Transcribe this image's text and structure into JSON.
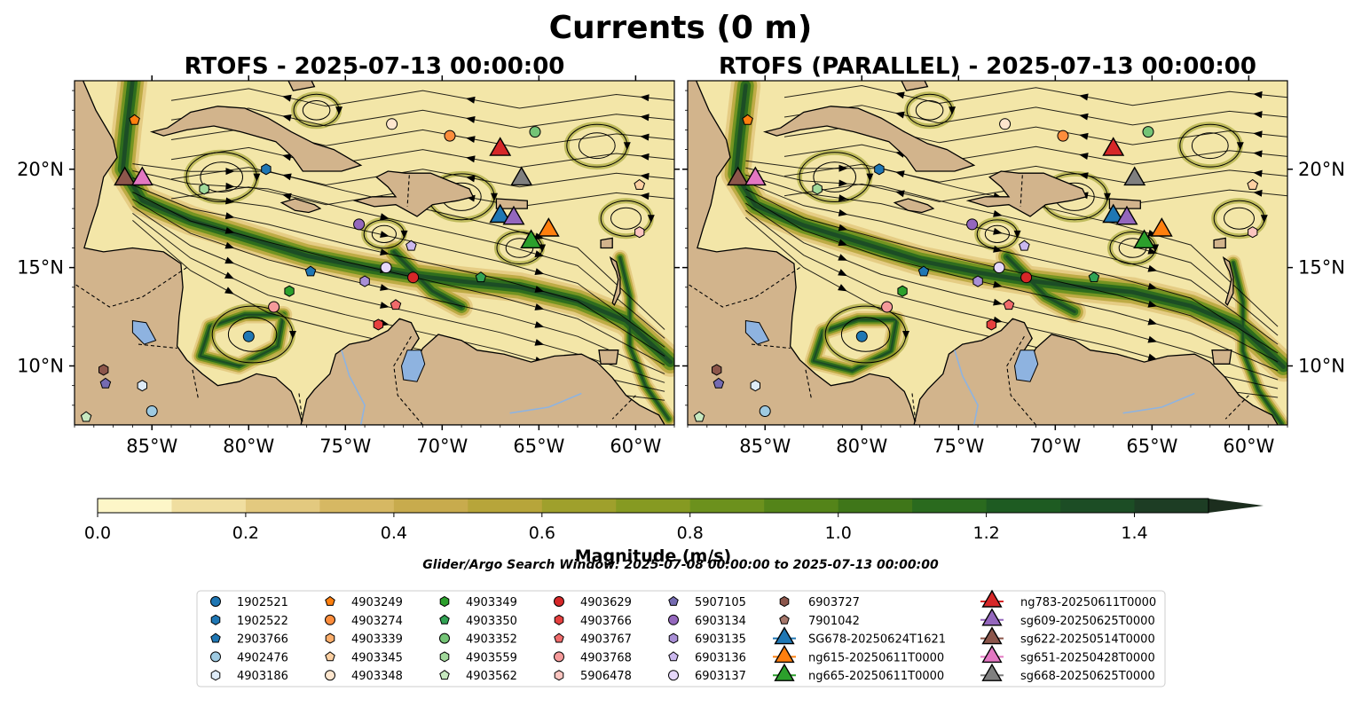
{
  "figure": {
    "suptitle": "Currents (0 m)",
    "search_window": "Glider/Argo Search Window: 2025-07-08 00:00:00 to 2025-07-13 00:00:00"
  },
  "panels": [
    {
      "title": "RTOFS - 2025-07-13 00:00:00"
    },
    {
      "title": "RTOFS (PARALLEL) - 2025-07-13 00:00:00"
    }
  ],
  "axes": {
    "lon_ticks": [
      {
        "value": -85,
        "label": "85°W"
      },
      {
        "value": -80,
        "label": "80°W"
      },
      {
        "value": -75,
        "label": "75°W"
      },
      {
        "value": -70,
        "label": "70°W"
      },
      {
        "value": -65,
        "label": "65°W"
      },
      {
        "value": -60,
        "label": "60°W"
      }
    ],
    "lat_ticks": [
      {
        "value": 20,
        "label": "20°N"
      },
      {
        "value": 15,
        "label": "15°N"
      },
      {
        "value": 10,
        "label": "10°N"
      }
    ],
    "lon_range": [
      -89,
      -58
    ],
    "lat_range": [
      7,
      24.5
    ]
  },
  "colorbar": {
    "label": "Magnitude (m/s)",
    "ticks": [
      "0.0",
      "0.2",
      "0.4",
      "0.6",
      "0.8",
      "1.0",
      "1.2",
      "1.4"
    ],
    "range": [
      0,
      1.5
    ],
    "extend": "max",
    "colors": [
      "#fdf6c8",
      "#f0dea0",
      "#e3c97f",
      "#d6b863",
      "#c8ab4d",
      "#b7a53a",
      "#9fa02c",
      "#869a22",
      "#6c911d",
      "#548419",
      "#3f7619",
      "#2a6a1e",
      "#1e5b22",
      "#1c4d25",
      "#1d3d24",
      "#1c2e1e"
    ]
  },
  "colors": {
    "land": "#d2b48c",
    "lake": "#8eb3e0",
    "ocean_low": "#f3e6a8",
    "current": "#1e6b2a"
  },
  "legend": {
    "columns": [
      [
        {
          "label": "1902521",
          "shape": "circle",
          "color": "#1f77b4"
        },
        {
          "label": "1902522",
          "shape": "hexagon",
          "color": "#1f77b4"
        },
        {
          "label": "2903766",
          "shape": "pentagon",
          "color": "#1f77b4"
        },
        {
          "label": "4902476",
          "shape": "circle",
          "color": "#9ecae1"
        },
        {
          "label": "4903186",
          "shape": "hexagon",
          "color": "#deebf7"
        }
      ],
      [
        {
          "label": "4903249",
          "shape": "pentagon",
          "color": "#ff7f0e"
        },
        {
          "label": "4903274",
          "shape": "circle",
          "color": "#fd8d3c"
        },
        {
          "label": "4903339",
          "shape": "hexagon",
          "color": "#fdae6b"
        },
        {
          "label": "4903345",
          "shape": "pentagon",
          "color": "#fdd0a2"
        },
        {
          "label": "4903348",
          "shape": "circle",
          "color": "#fee6ce"
        }
      ],
      [
        {
          "label": "4903349",
          "shape": "hexagon",
          "color": "#2ca02c"
        },
        {
          "label": "4903350",
          "shape": "pentagon",
          "color": "#31a354"
        },
        {
          "label": "4903352",
          "shape": "circle",
          "color": "#74c476"
        },
        {
          "label": "4903559",
          "shape": "hexagon",
          "color": "#a1d99b"
        },
        {
          "label": "4903562",
          "shape": "pentagon",
          "color": "#c7e9c0"
        }
      ],
      [
        {
          "label": "4903629",
          "shape": "circle",
          "color": "#d62728"
        },
        {
          "label": "4903766",
          "shape": "hexagon",
          "color": "#e6403f"
        },
        {
          "label": "4903767",
          "shape": "pentagon",
          "color": "#f06b6b"
        },
        {
          "label": "4903768",
          "shape": "circle",
          "color": "#f59a9a"
        },
        {
          "label": "5906478",
          "shape": "hexagon",
          "color": "#fcc5c0"
        }
      ],
      [
        {
          "label": "5907105",
          "shape": "pentagon",
          "color": "#756bb1"
        },
        {
          "label": "6903134",
          "shape": "circle",
          "color": "#9467bd"
        },
        {
          "label": "6903135",
          "shape": "hexagon",
          "color": "#a98fd6"
        },
        {
          "label": "6903136",
          "shape": "pentagon",
          "color": "#cbb8ee"
        },
        {
          "label": "6903137",
          "shape": "circle",
          "color": "#e6d8fb"
        }
      ],
      [
        {
          "label": "6903727",
          "shape": "hexagon",
          "color": "#8c564b"
        },
        {
          "label": "7901042",
          "shape": "pentagon",
          "color": "#a6776b"
        },
        {
          "label": "SG678-20250624T1621",
          "shape": "triangle",
          "color": "#1f77b4"
        },
        {
          "label": "ng615-20250611T0000",
          "shape": "triangle",
          "color": "#ff7f0e"
        },
        {
          "label": "ng665-20250611T0000",
          "shape": "triangle",
          "color": "#2ca02c"
        }
      ],
      [
        {
          "label": "ng783-20250611T0000",
          "shape": "triangle",
          "color": "#d62728"
        },
        {
          "label": "sg609-20250625T0000",
          "shape": "triangle",
          "color": "#9467bd"
        },
        {
          "label": "sg622-20250514T0000",
          "shape": "triangle",
          "color": "#8c564b"
        },
        {
          "label": "sg651-20250428T0000",
          "shape": "triangle",
          "color": "#e377c2"
        },
        {
          "label": "sg668-20250625T0000",
          "shape": "triangle",
          "color": "#7f7f7f"
        }
      ]
    ]
  },
  "markers": [
    {
      "id": "4903249",
      "lon": -85.9,
      "lat": 22.5,
      "shape": "pentagon",
      "color": "#ff7f0e"
    },
    {
      "id": "4903348",
      "lon": -72.6,
      "lat": 22.3,
      "shape": "circle",
      "color": "#fee6ce"
    },
    {
      "id": "4903274",
      "lon": -69.6,
      "lat": 21.7,
      "shape": "circle",
      "color": "#fd8d3c"
    },
    {
      "id": "4903352",
      "lon": -65.2,
      "lat": 21.9,
      "shape": "circle",
      "color": "#74c476"
    },
    {
      "id": "1902522",
      "lon": -79.1,
      "lat": 20.0,
      "shape": "hexagon",
      "color": "#1f77b4"
    },
    {
      "id": "4903559",
      "lon": -82.3,
      "lat": 19.0,
      "shape": "hexagon",
      "color": "#a1d99b"
    },
    {
      "id": "4903345",
      "lon": -59.8,
      "lat": 19.2,
      "shape": "pentagon",
      "color": "#fdd0a2"
    },
    {
      "id": "6903134",
      "lon": -74.3,
      "lat": 17.2,
      "shape": "circle",
      "color": "#9467bd"
    },
    {
      "id": "6903136",
      "lon": -71.6,
      "lat": 16.1,
      "shape": "pentagon",
      "color": "#cbb8ee"
    },
    {
      "id": "5906478",
      "lon": -59.8,
      "lat": 16.8,
      "shape": "hexagon",
      "color": "#fcc5c0"
    },
    {
      "id": "6903137",
      "lon": -72.9,
      "lat": 15.0,
      "shape": "circle",
      "color": "#e6d8fb"
    },
    {
      "id": "4903629",
      "lon": -71.5,
      "lat": 14.5,
      "shape": "circle",
      "color": "#d62728"
    },
    {
      "id": "2903766",
      "lon": -76.8,
      "lat": 14.8,
      "shape": "pentagon",
      "color": "#1f77b4"
    },
    {
      "id": "6903135",
      "lon": -74.0,
      "lat": 14.3,
      "shape": "hexagon",
      "color": "#a98fd6"
    },
    {
      "id": "4903350",
      "lon": -68.0,
      "lat": 14.5,
      "shape": "pentagon",
      "color": "#31a354"
    },
    {
      "id": "4903349",
      "lon": -77.9,
      "lat": 13.8,
      "shape": "hexagon",
      "color": "#2ca02c"
    },
    {
      "id": "4903767",
      "lon": -72.4,
      "lat": 13.1,
      "shape": "pentagon",
      "color": "#f06b6b"
    },
    {
      "id": "4903768",
      "lon": -78.7,
      "lat": 13.0,
      "shape": "circle",
      "color": "#f59a9a"
    },
    {
      "id": "4903766",
      "lon": -73.3,
      "lat": 12.1,
      "shape": "hexagon",
      "color": "#e6403f"
    },
    {
      "id": "1902521",
      "lon": -80.0,
      "lat": 11.5,
      "shape": "circle",
      "color": "#1f77b4"
    },
    {
      "id": "6903727",
      "lon": -87.5,
      "lat": 9.8,
      "shape": "hexagon",
      "color": "#8c564b"
    },
    {
      "id": "5907105",
      "lon": -87.4,
      "lat": 9.1,
      "shape": "pentagon",
      "color": "#756bb1"
    },
    {
      "id": "4903186",
      "lon": -85.5,
      "lat": 9.0,
      "shape": "hexagon",
      "color": "#deebf7"
    },
    {
      "id": "4902476",
      "lon": -85.0,
      "lat": 7.7,
      "shape": "circle",
      "color": "#9ecae1"
    },
    {
      "id": "4903562",
      "lon": -88.4,
      "lat": 7.4,
      "shape": "pentagon",
      "color": "#c7e9c0"
    },
    {
      "id": "ng783-20250611T0000",
      "lon": -67.0,
      "lat": 21.0,
      "shape": "triangle",
      "color": "#d62728"
    },
    {
      "id": "sg668-20250625T0000",
      "lon": -65.9,
      "lat": 19.5,
      "shape": "triangle",
      "color": "#7f7f7f"
    },
    {
      "id": "sg622-20250514T0000",
      "lon": -86.4,
      "lat": 19.5,
      "shape": "triangle",
      "color": "#8c564b"
    },
    {
      "id": "sg651-20250428T0000",
      "lon": -85.5,
      "lat": 19.5,
      "shape": "triangle",
      "color": "#e377c2"
    },
    {
      "id": "SG678-20250624T1621",
      "lon": -67.0,
      "lat": 17.6,
      "shape": "triangle",
      "color": "#1f77b4"
    },
    {
      "id": "sg609-20250625T0000",
      "lon": -66.3,
      "lat": 17.5,
      "shape": "triangle",
      "color": "#9467bd"
    },
    {
      "id": "ng615-20250611T0000",
      "lon": -64.5,
      "lat": 16.9,
      "shape": "triangle",
      "color": "#ff7f0e"
    },
    {
      "id": "ng665-20250611T0000",
      "lon": -65.4,
      "lat": 16.3,
      "shape": "triangle",
      "color": "#2ca02c"
    }
  ]
}
